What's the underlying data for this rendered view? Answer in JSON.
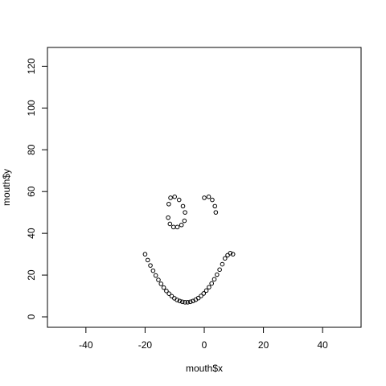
{
  "chart_data": {
    "type": "scatter",
    "title": "",
    "xlabel": "mouth$x",
    "ylabel": "mouth$y",
    "xlim": [
      -53,
      53
    ],
    "ylim": [
      -5,
      129
    ],
    "xticks": [
      -40,
      -20,
      0,
      20,
      40
    ],
    "yticks": [
      0,
      20,
      40,
      60,
      80,
      100,
      120
    ],
    "grid": false,
    "marker": "open-circle",
    "point_color": "#000000",
    "series": [
      {
        "x": [
          -20,
          -19.1,
          -18.2,
          -17.3,
          -16.4,
          -15.5,
          -14.6,
          -13.7,
          -12.8,
          -11.9,
          -11,
          -10.1,
          -9.2,
          -8.3,
          -7.4,
          -6.5,
          -5.6,
          -4.7,
          -3.8,
          -2.9,
          -2,
          -1.1,
          -0.2,
          0.7,
          1.6,
          2.5,
          3.4,
          4.3,
          5.2,
          6.1,
          7,
          7.9,
          8.8,
          9.7,
          -12,
          -11.4,
          -10,
          -8.5,
          -7.2,
          -6.5,
          -6.7,
          -7.7,
          -9.1,
          -10.4,
          -11.6,
          -12.2,
          0,
          1.5,
          2.7,
          3.6,
          3.9
        ],
        "y": [
          30,
          27.2,
          24.6,
          22.1,
          19.8,
          17.7,
          15.8,
          14,
          12.4,
          11.1,
          9.9,
          8.9,
          8.1,
          7.6,
          7.2,
          7,
          7,
          7.2,
          7.6,
          8.2,
          9,
          10,
          11.2,
          12.6,
          14.2,
          16,
          18,
          20.2,
          22.6,
          25.2,
          28,
          29.5,
          30.5,
          30,
          54,
          57,
          57.5,
          56,
          53,
          50,
          46,
          44,
          43,
          43,
          44.5,
          47.5,
          57,
          57.5,
          56,
          53,
          50
        ]
      }
    ]
  }
}
